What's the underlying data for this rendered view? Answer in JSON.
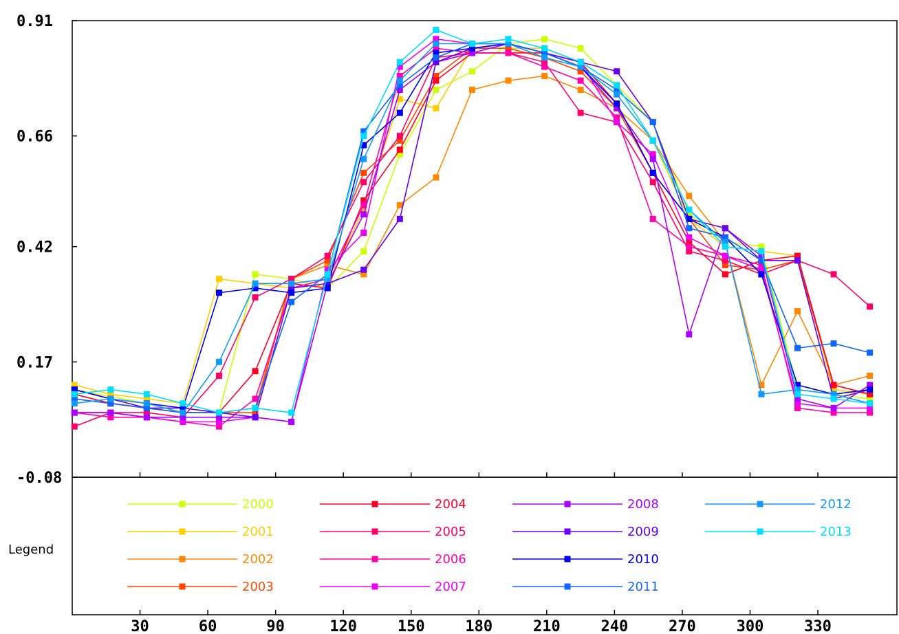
{
  "chart_data": {
    "type": "line",
    "title": "",
    "xlabel": "",
    "ylabel": "",
    "y_ticks": [
      "0.91",
      "0.66",
      "0.42",
      "0.17",
      "-0.08"
    ],
    "y_tick_values": [
      0.91,
      0.66,
      0.42,
      0.17,
      -0.08
    ],
    "ylim": [
      -0.08,
      0.91
    ],
    "x_ticks": [
      "30",
      "60",
      "90",
      "120",
      "150",
      "180",
      "210",
      "240",
      "270",
      "300",
      "330"
    ],
    "x_tick_values": [
      30,
      60,
      90,
      120,
      150,
      180,
      210,
      240,
      270,
      300,
      330
    ],
    "xlim": [
      0,
      365
    ],
    "grid": false,
    "legend_title": "Legend",
    "legend_placement": "bottom",
    "x": [
      1,
      17,
      33,
      49,
      65,
      81,
      97,
      113,
      129,
      145,
      161,
      177,
      193,
      209,
      225,
      241,
      257,
      273,
      289,
      305,
      321,
      337,
      353
    ],
    "series": [
      {
        "name": "2000",
        "color": "#ccff00",
        "values": [
          0.11,
          0.095,
          0.08,
          0.07,
          0.06,
          0.36,
          0.35,
          0.33,
          0.41,
          0.62,
          0.76,
          0.8,
          0.86,
          0.87,
          0.85,
          0.77,
          0.69,
          0.49,
          0.43,
          0.42,
          0.11,
          0.1,
          0.09
        ]
      },
      {
        "name": "2001",
        "color": "#ffcc00",
        "values": [
          0.12,
          0.1,
          0.09,
          0.08,
          0.35,
          0.34,
          0.33,
          0.34,
          0.5,
          0.74,
          0.72,
          0.85,
          0.85,
          0.85,
          0.82,
          0.77,
          0.65,
          0.48,
          0.42,
          0.41,
          0.4,
          0.11,
          0.1
        ]
      },
      {
        "name": "2002",
        "color": "#ff8800",
        "values": [
          0.1,
          0.08,
          0.07,
          0.06,
          0.06,
          0.07,
          0.35,
          0.38,
          0.36,
          0.51,
          0.57,
          0.76,
          0.78,
          0.79,
          0.76,
          0.72,
          0.65,
          0.53,
          0.43,
          0.12,
          0.28,
          0.12,
          0.14
        ]
      },
      {
        "name": "2003",
        "color": "#ff4400",
        "values": [
          0.09,
          0.08,
          0.07,
          0.06,
          0.06,
          0.06,
          0.35,
          0.39,
          0.58,
          0.65,
          0.79,
          0.85,
          0.85,
          0.83,
          0.8,
          0.72,
          0.58,
          0.48,
          0.38,
          0.37,
          0.39,
          0.12,
          0.1
        ]
      },
      {
        "name": "2004",
        "color": "#ff0022",
        "values": [
          0.1,
          0.08,
          0.07,
          0.06,
          0.06,
          0.15,
          0.34,
          0.33,
          0.52,
          0.63,
          0.78,
          0.84,
          0.84,
          0.84,
          0.82,
          0.73,
          0.58,
          0.43,
          0.36,
          0.39,
          0.4,
          0.12,
          0.1
        ]
      },
      {
        "name": "2005",
        "color": "#ff0066",
        "values": [
          0.03,
          0.06,
          0.06,
          0.05,
          0.14,
          0.31,
          0.35,
          0.4,
          0.56,
          0.66,
          0.83,
          0.84,
          0.84,
          0.82,
          0.71,
          0.69,
          0.56,
          0.41,
          0.39,
          0.36,
          0.39,
          0.36,
          0.29
        ]
      },
      {
        "name": "2006",
        "color": "#ff00aa",
        "values": [
          0.06,
          0.05,
          0.05,
          0.04,
          0.03,
          0.09,
          0.33,
          0.35,
          0.51,
          0.79,
          0.85,
          0.84,
          0.84,
          0.81,
          0.78,
          0.7,
          0.48,
          0.42,
          0.4,
          0.38,
          0.07,
          0.06,
          0.06
        ]
      },
      {
        "name": "2007",
        "color": "#ee00ee",
        "values": [
          0.06,
          0.06,
          0.05,
          0.04,
          0.04,
          0.05,
          0.04,
          0.37,
          0.45,
          0.81,
          0.87,
          0.86,
          0.86,
          0.84,
          0.82,
          0.69,
          0.62,
          0.44,
          0.4,
          0.37,
          0.08,
          0.07,
          0.07
        ]
      },
      {
        "name": "2008",
        "color": "#aa00ff",
        "values": [
          0.06,
          0.06,
          0.05,
          0.05,
          0.05,
          0.05,
          0.04,
          0.34,
          0.49,
          0.76,
          0.82,
          0.84,
          0.86,
          0.84,
          0.81,
          0.72,
          0.61,
          0.23,
          0.46,
          0.4,
          0.09,
          0.07,
          0.12
        ]
      },
      {
        "name": "2009",
        "color": "#6600ee",
        "values": [
          0.11,
          0.09,
          0.07,
          0.07,
          0.06,
          0.05,
          0.33,
          0.34,
          0.37,
          0.48,
          0.82,
          0.85,
          0.86,
          0.84,
          0.82,
          0.8,
          0.69,
          0.48,
          0.46,
          0.39,
          0.39,
          0.09,
          0.11
        ]
      },
      {
        "name": "2010",
        "color": "#0000ee",
        "values": [
          0.11,
          0.09,
          0.08,
          0.07,
          0.32,
          0.33,
          0.32,
          0.33,
          0.64,
          0.71,
          0.84,
          0.85,
          0.86,
          0.84,
          0.81,
          0.73,
          0.58,
          0.48,
          0.44,
          0.36,
          0.12,
          0.1,
          0.11
        ]
      },
      {
        "name": "2011",
        "color": "#1166ff",
        "values": [
          0.09,
          0.08,
          0.07,
          0.06,
          0.06,
          0.07,
          0.3,
          0.36,
          0.67,
          0.77,
          0.83,
          0.86,
          0.86,
          0.84,
          0.81,
          0.76,
          0.69,
          0.46,
          0.44,
          0.39,
          0.2,
          0.21,
          0.19
        ]
      },
      {
        "name": "2012",
        "color": "#1199ff",
        "values": [
          0.08,
          0.09,
          0.08,
          0.06,
          0.17,
          0.34,
          0.34,
          0.35,
          0.61,
          0.78,
          0.86,
          0.86,
          0.86,
          0.83,
          0.81,
          0.75,
          0.65,
          0.5,
          0.43,
          0.1,
          0.11,
          0.1,
          0.08
        ]
      },
      {
        "name": "2013",
        "color": "#00ddff",
        "values": [
          0.1,
          0.11,
          0.1,
          0.08,
          0.06,
          0.07,
          0.06,
          0.36,
          0.66,
          0.82,
          0.89,
          0.86,
          0.87,
          0.85,
          0.82,
          0.77,
          0.65,
          0.5,
          0.42,
          0.41,
          0.1,
          0.09,
          0.08
        ]
      }
    ]
  }
}
